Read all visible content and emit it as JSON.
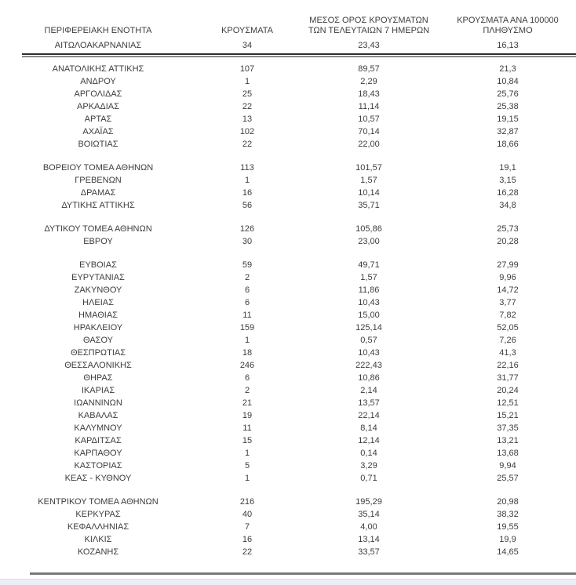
{
  "colors": {
    "text_color": "#3d3d3d",
    "rule_color": "#2e2e2e",
    "bottom_rule_color": "#7a7a7a",
    "strip_color": "#ecf0f6",
    "strip_border_color": "#d8dee9"
  },
  "table": {
    "headers": {
      "region": "ΠΕΡΙΦΕΡΕΙΑΚΗ ΕΝΟΤΗΤΑ",
      "cases": "ΚΡΟΥΣΜΑΤΑ",
      "avg7_line1": "ΜΕΣΟΣ ΟΡΟΣ ΚΡΟΥΣΜΑΤΩΝ",
      "avg7_line2": "ΤΩΝ ΤΕΛΕΥΤΑΙΩΝ 7 ΗΜΕΡΩΝ",
      "per100k_line1": "ΚΡΟΥΣΜΑΤΑ ΑΝΑ 100000",
      "per100k_line2": "ΠΛΗΘΥΣΜΟ"
    },
    "rows": [
      {
        "region": "ΑΙΤΩΛΟΑΚΑΡΝΑΝΙΑΣ",
        "cases": "34",
        "avg7": "23,43",
        "per100k": "16,13",
        "new_group": false
      },
      {
        "region": "ΑΝΑΤΟΛΙΚΗΣ ΑΤΤΙΚΗΣ",
        "cases": "107",
        "avg7": "89,57",
        "per100k": "21,3",
        "new_group": true
      },
      {
        "region": "ΑΝΔΡΟΥ",
        "cases": "1",
        "avg7": "2,29",
        "per100k": "10,84",
        "new_group": false
      },
      {
        "region": "ΑΡΓΟΛΙΔΑΣ",
        "cases": "25",
        "avg7": "18,43",
        "per100k": "25,76",
        "new_group": false
      },
      {
        "region": "ΑΡΚΑΔΙΑΣ",
        "cases": "22",
        "avg7": "11,14",
        "per100k": "25,38",
        "new_group": false
      },
      {
        "region": "ΑΡΤΑΣ",
        "cases": "13",
        "avg7": "10,57",
        "per100k": "19,15",
        "new_group": false
      },
      {
        "region": "ΑΧΑΪΑΣ",
        "cases": "102",
        "avg7": "70,14",
        "per100k": "32,87",
        "new_group": false
      },
      {
        "region": "ΒΟΙΩΤΙΑΣ",
        "cases": "22",
        "avg7": "22,00",
        "per100k": "18,66",
        "new_group": false
      },
      {
        "region": "ΒΟΡΕΙΟΥ ΤΟΜΕΑ ΑΘΗΝΩΝ",
        "cases": "113",
        "avg7": "101,57",
        "per100k": "19,1",
        "new_group": true
      },
      {
        "region": "ΓΡΕΒΕΝΩΝ",
        "cases": "1",
        "avg7": "1,57",
        "per100k": "3,15",
        "new_group": false
      },
      {
        "region": "ΔΡΑΜΑΣ",
        "cases": "16",
        "avg7": "10,14",
        "per100k": "16,28",
        "new_group": false
      },
      {
        "region": "ΔΥΤΙΚΗΣ ΑΤΤΙΚΗΣ",
        "cases": "56",
        "avg7": "35,71",
        "per100k": "34,8",
        "new_group": false
      },
      {
        "region": "ΔΥΤΙΚΟΥ ΤΟΜΕΑ ΑΘΗΝΩΝ",
        "cases": "126",
        "avg7": "105,86",
        "per100k": "25,73",
        "new_group": true
      },
      {
        "region": "ΕΒΡΟΥ",
        "cases": "30",
        "avg7": "23,00",
        "per100k": "20,28",
        "new_group": false
      },
      {
        "region": "ΕΥΒΟΙΑΣ",
        "cases": "59",
        "avg7": "49,71",
        "per100k": "27,99",
        "new_group": true
      },
      {
        "region": "ΕΥΡΥΤΑΝΙΑΣ",
        "cases": "2",
        "avg7": "1,57",
        "per100k": "9,96",
        "new_group": false
      },
      {
        "region": "ΖΑΚΥΝΘΟΥ",
        "cases": "6",
        "avg7": "11,86",
        "per100k": "14,72",
        "new_group": false
      },
      {
        "region": "ΗΛΕΙΑΣ",
        "cases": "6",
        "avg7": "10,43",
        "per100k": "3,77",
        "new_group": false
      },
      {
        "region": "ΗΜΑΘΙΑΣ",
        "cases": "11",
        "avg7": "15,00",
        "per100k": "7,82",
        "new_group": false
      },
      {
        "region": "ΗΡΑΚΛΕΙΟΥ",
        "cases": "159",
        "avg7": "125,14",
        "per100k": "52,05",
        "new_group": false
      },
      {
        "region": "ΘΑΣΟΥ",
        "cases": "1",
        "avg7": "0,57",
        "per100k": "7,26",
        "new_group": false
      },
      {
        "region": "ΘΕΣΠΡΩΤΙΑΣ",
        "cases": "18",
        "avg7": "10,43",
        "per100k": "41,3",
        "new_group": false
      },
      {
        "region": "ΘΕΣΣΑΛΟΝΙΚΗΣ",
        "cases": "246",
        "avg7": "222,43",
        "per100k": "22,16",
        "new_group": false
      },
      {
        "region": "ΘΗΡΑΣ",
        "cases": "6",
        "avg7": "10,86",
        "per100k": "31,77",
        "new_group": false
      },
      {
        "region": "ΙΚΑΡΙΑΣ",
        "cases": "2",
        "avg7": "2,14",
        "per100k": "20,24",
        "new_group": false
      },
      {
        "region": "ΙΩΑΝΝΙΝΩΝ",
        "cases": "21",
        "avg7": "13,57",
        "per100k": "12,51",
        "new_group": false
      },
      {
        "region": "ΚΑΒΑΛΑΣ",
        "cases": "19",
        "avg7": "22,14",
        "per100k": "15,21",
        "new_group": false
      },
      {
        "region": "ΚΑΛΥΜΝΟΥ",
        "cases": "11",
        "avg7": "8,14",
        "per100k": "37,35",
        "new_group": false
      },
      {
        "region": "ΚΑΡΔΙΤΣΑΣ",
        "cases": "15",
        "avg7": "12,14",
        "per100k": "13,21",
        "new_group": false
      },
      {
        "region": "ΚΑΡΠΑΘΟΥ",
        "cases": "1",
        "avg7": "0,14",
        "per100k": "13,68",
        "new_group": false
      },
      {
        "region": "ΚΑΣΤΟΡΙΑΣ",
        "cases": "5",
        "avg7": "3,29",
        "per100k": "9,94",
        "new_group": false
      },
      {
        "region": "ΚΕΑΣ - ΚΥΘΝΟΥ",
        "cases": "1",
        "avg7": "0,71",
        "per100k": "25,57",
        "new_group": false
      },
      {
        "region": "ΚΕΝΤΡΙΚΟΥ ΤΟΜΕΑ ΑΘΗΝΩΝ",
        "cases": "216",
        "avg7": "195,29",
        "per100k": "20,98",
        "new_group": true
      },
      {
        "region": "ΚΕΡΚΥΡΑΣ",
        "cases": "40",
        "avg7": "35,14",
        "per100k": "38,32",
        "new_group": false
      },
      {
        "region": "ΚΕΦΑΛΛΗΝΙΑΣ",
        "cases": "7",
        "avg7": "4,00",
        "per100k": "19,55",
        "new_group": false
      },
      {
        "region": "ΚΙΛΚΙΣ",
        "cases": "16",
        "avg7": "13,14",
        "per100k": "19,9",
        "new_group": false
      },
      {
        "region": "ΚΟΖΑΝΗΣ",
        "cases": "22",
        "avg7": "33,57",
        "per100k": "14,65",
        "new_group": false
      }
    ]
  }
}
